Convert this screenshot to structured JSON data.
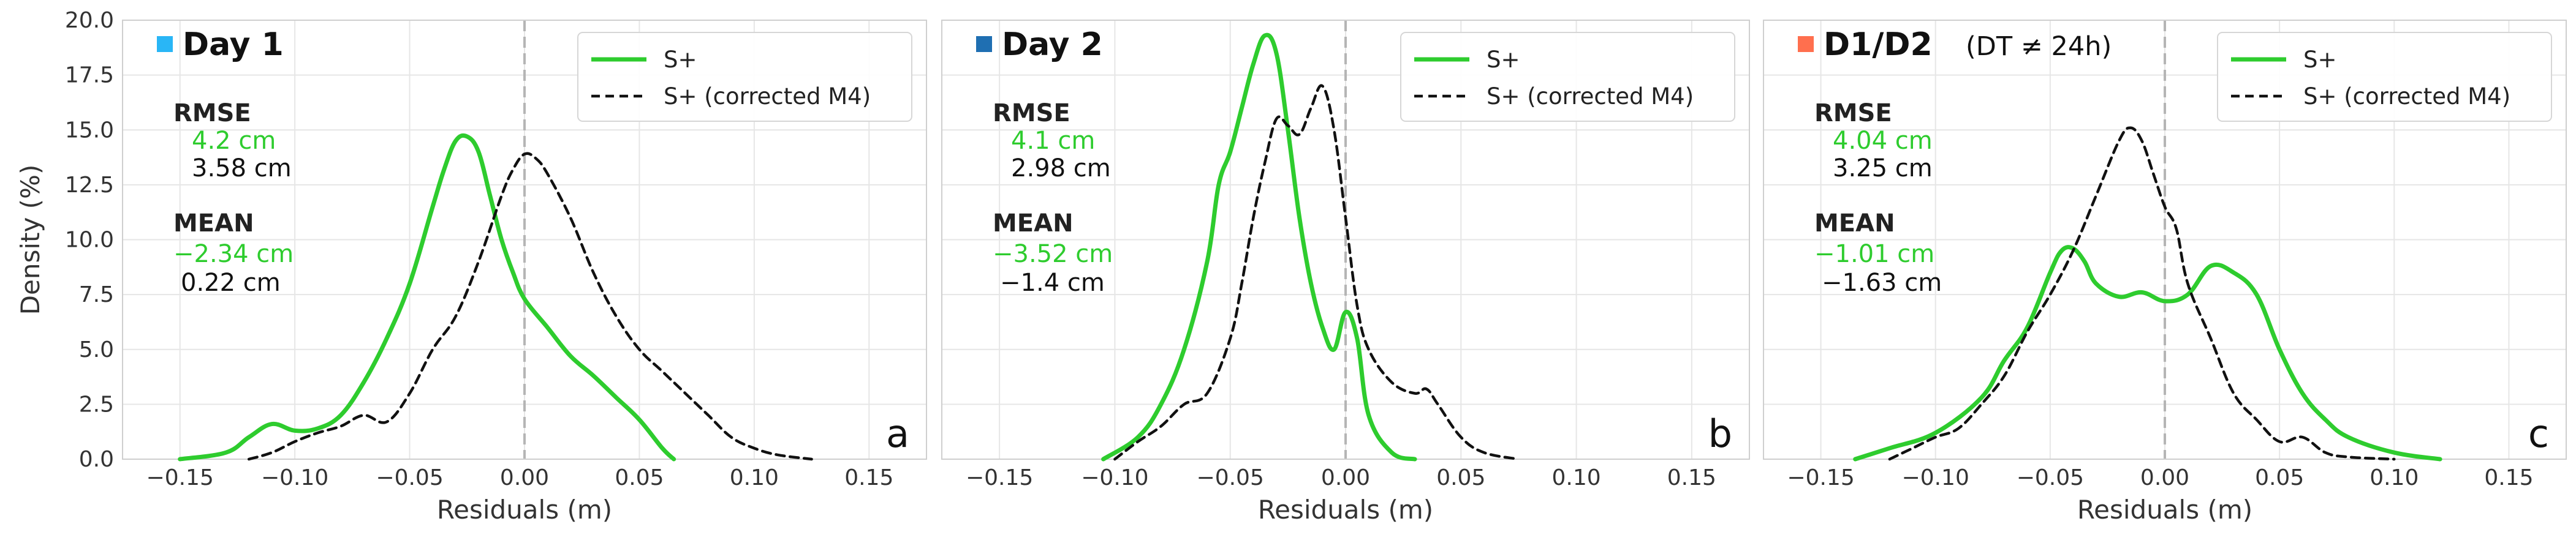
{
  "chart_data": [
    {
      "type": "line",
      "panel_label": "a",
      "title": "Day 1",
      "title_note": "",
      "title_marker_color": "#29b6f6",
      "xlabel": "Residuals (m)",
      "ylabel": "Density (%)",
      "xlim": [
        -0.175,
        0.175
      ],
      "ylim": [
        0,
        20
      ],
      "xticks": [
        -0.15,
        -0.1,
        -0.05,
        0.0,
        0.05,
        0.1,
        0.15
      ],
      "xtick_labels": [
        "−0.15",
        "−0.10",
        "−0.05",
        "0.00",
        "0.05",
        "0.10",
        "0.15"
      ],
      "yticks": [
        0,
        2.5,
        5,
        7.5,
        10,
        12.5,
        15,
        17.5,
        20
      ],
      "ytick_labels": [
        "0.0",
        "2.5",
        "5.0",
        "7.5",
        "10.0",
        "12.5",
        "15.0",
        "17.5",
        "20.0"
      ],
      "grid": true,
      "legend_position": "top-right",
      "vline_x": 0.0,
      "stats": {
        "rmse_label": "RMSE",
        "rmse_splus": "4.2 cm",
        "rmse_corrected": "3.58 cm",
        "mean_label": "MEAN",
        "mean_splus": "−2.34 cm",
        "mean_corrected": "0.22 cm"
      },
      "series": [
        {
          "name": "S+",
          "color": "#2ecc2e",
          "style": "solid",
          "x": [
            -0.15,
            -0.13,
            -0.12,
            -0.11,
            -0.1,
            -0.09,
            -0.08,
            -0.07,
            -0.06,
            -0.05,
            -0.04,
            -0.035,
            -0.03,
            -0.025,
            -0.02,
            -0.015,
            -0.01,
            -0.005,
            0.0,
            0.01,
            0.02,
            0.03,
            0.04,
            0.05,
            0.06,
            0.065
          ],
          "values": [
            0.0,
            0.3,
            1.0,
            1.6,
            1.3,
            1.4,
            2.0,
            3.5,
            5.5,
            8.0,
            11.5,
            13.2,
            14.5,
            14.7,
            14.0,
            12.0,
            10.0,
            8.5,
            7.3,
            6.0,
            4.7,
            3.8,
            2.8,
            1.8,
            0.5,
            0.0
          ]
        },
        {
          "name": "S+ (corrected M4)",
          "color": "#111111",
          "style": "dashed",
          "x": [
            -0.12,
            -0.11,
            -0.1,
            -0.09,
            -0.08,
            -0.07,
            -0.06,
            -0.05,
            -0.04,
            -0.03,
            -0.02,
            -0.01,
            -0.005,
            0.0,
            0.005,
            0.01,
            0.02,
            0.03,
            0.04,
            0.05,
            0.06,
            0.07,
            0.08,
            0.09,
            0.1,
            0.11,
            0.125
          ],
          "values": [
            0.0,
            0.3,
            0.8,
            1.2,
            1.5,
            2.0,
            1.7,
            3.0,
            5.0,
            6.5,
            9.0,
            12.0,
            13.2,
            13.9,
            13.7,
            13.0,
            11.0,
            8.5,
            6.5,
            5.0,
            4.0,
            3.0,
            2.0,
            1.0,
            0.5,
            0.2,
            0.0
          ]
        }
      ]
    },
    {
      "type": "line",
      "panel_label": "b",
      "title": "Day 2",
      "title_note": "",
      "title_marker_color": "#1f6fb2",
      "xlabel": "Residuals (m)",
      "ylabel": "",
      "xlim": [
        -0.175,
        0.175
      ],
      "ylim": [
        0,
        20
      ],
      "xticks": [
        -0.15,
        -0.1,
        -0.05,
        0.0,
        0.05,
        0.1,
        0.15
      ],
      "xtick_labels": [
        "−0.15",
        "−0.10",
        "−0.05",
        "0.00",
        "0.05",
        "0.10",
        "0.15"
      ],
      "grid": true,
      "legend_position": "top-right",
      "vline_x": 0.0,
      "stats": {
        "rmse_label": "RMSE",
        "rmse_splus": "4.1 cm",
        "rmse_corrected": "2.98 cm",
        "mean_label": "MEAN",
        "mean_splus": "−3.52 cm",
        "mean_corrected": "−1.4 cm"
      },
      "series": [
        {
          "name": "S+",
          "color": "#2ecc2e",
          "style": "solid",
          "x": [
            -0.105,
            -0.09,
            -0.08,
            -0.07,
            -0.06,
            -0.055,
            -0.05,
            -0.045,
            -0.04,
            -0.035,
            -0.03,
            -0.025,
            -0.02,
            -0.015,
            -0.01,
            -0.005,
            0.0,
            0.005,
            0.01,
            0.02,
            0.03
          ],
          "values": [
            0.0,
            1.0,
            2.5,
            5.0,
            9.0,
            12.5,
            14.0,
            16.0,
            18.0,
            19.3,
            18.5,
            15.0,
            11.0,
            8.0,
            6.0,
            5.0,
            6.7,
            5.5,
            2.0,
            0.3,
            0.0
          ]
        },
        {
          "name": "S+ (corrected M4)",
          "color": "#111111",
          "style": "dashed",
          "x": [
            -0.1,
            -0.09,
            -0.08,
            -0.07,
            -0.06,
            -0.05,
            -0.045,
            -0.04,
            -0.035,
            -0.03,
            -0.025,
            -0.02,
            -0.015,
            -0.01,
            -0.005,
            0.0,
            0.005,
            0.01,
            0.02,
            0.03,
            0.035,
            0.04,
            0.05,
            0.06,
            0.075
          ],
          "values": [
            0.0,
            0.8,
            1.5,
            2.5,
            3.0,
            5.5,
            8.0,
            11.0,
            13.5,
            15.5,
            15.2,
            14.8,
            16.0,
            17.0,
            15.0,
            11.0,
            7.0,
            5.0,
            3.5,
            3.0,
            3.2,
            2.5,
            1.0,
            0.3,
            0.0
          ]
        }
      ]
    },
    {
      "type": "line",
      "panel_label": "c",
      "title": "D1/D2",
      "title_note": "(DT ≠ 24h)",
      "title_marker_color": "#ff6f4e",
      "xlabel": "Residuals (m)",
      "ylabel": "",
      "xlim": [
        -0.175,
        0.175
      ],
      "ylim": [
        0,
        20
      ],
      "xticks": [
        -0.15,
        -0.1,
        -0.05,
        0.0,
        0.05,
        0.1,
        0.15
      ],
      "xtick_labels": [
        "−0.15",
        "−0.10",
        "−0.05",
        "0.00",
        "0.05",
        "0.10",
        "0.15"
      ],
      "grid": true,
      "legend_position": "top-right",
      "vline_x": 0.0,
      "stats": {
        "rmse_label": "RMSE",
        "rmse_splus": "4.04 cm",
        "rmse_corrected": "3.25 cm",
        "mean_label": "MEAN",
        "mean_splus": "−1.01 cm",
        "mean_corrected": "−1.63 cm"
      },
      "series": [
        {
          "name": "S+",
          "color": "#2ecc2e",
          "style": "solid",
          "x": [
            -0.135,
            -0.12,
            -0.1,
            -0.08,
            -0.07,
            -0.06,
            -0.05,
            -0.045,
            -0.04,
            -0.035,
            -0.03,
            -0.02,
            -0.01,
            0.0,
            0.01,
            0.02,
            0.03,
            0.04,
            0.05,
            0.06,
            0.07,
            0.08,
            0.1,
            0.12
          ],
          "values": [
            0.0,
            0.5,
            1.2,
            2.8,
            4.5,
            6.0,
            8.5,
            9.5,
            9.6,
            9.0,
            8.0,
            7.4,
            7.6,
            7.2,
            7.5,
            8.8,
            8.5,
            7.5,
            5.0,
            3.0,
            1.8,
            1.0,
            0.3,
            0.0
          ]
        },
        {
          "name": "S+ (corrected M4)",
          "color": "#111111",
          "style": "dashed",
          "x": [
            -0.12,
            -0.11,
            -0.1,
            -0.09,
            -0.08,
            -0.07,
            -0.06,
            -0.05,
            -0.04,
            -0.03,
            -0.02,
            -0.015,
            -0.01,
            -0.005,
            0.0,
            0.005,
            0.01,
            0.02,
            0.03,
            0.04,
            0.05,
            0.06,
            0.07,
            0.08,
            0.1
          ],
          "values": [
            0.0,
            0.5,
            1.0,
            1.4,
            2.5,
            3.8,
            5.8,
            7.5,
            9.5,
            12.0,
            14.5,
            15.1,
            14.5,
            13.0,
            11.5,
            10.5,
            8.0,
            5.5,
            3.0,
            1.8,
            0.8,
            1.0,
            0.3,
            0.1,
            0.0
          ]
        }
      ]
    }
  ]
}
